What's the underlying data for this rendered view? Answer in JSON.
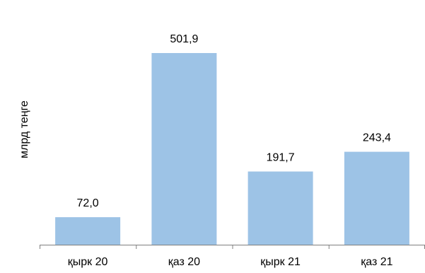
{
  "chart_data": {
    "type": "bar",
    "categories": [
      "қырк 20",
      "қаз 20",
      "қырк 21",
      "қаз  21"
    ],
    "values": [
      72.0,
      501.9,
      191.7,
      243.4
    ],
    "data_labels": [
      "72,0",
      "501,9",
      "191,7",
      "243,4"
    ],
    "ylabel": "млрд теңге",
    "xlabel": "",
    "title": "",
    "ylim": [
      0,
      560
    ],
    "grid": false,
    "legend": "none",
    "bar_color": "#9DC3E6",
    "axis_color": "#7f7f7f"
  }
}
